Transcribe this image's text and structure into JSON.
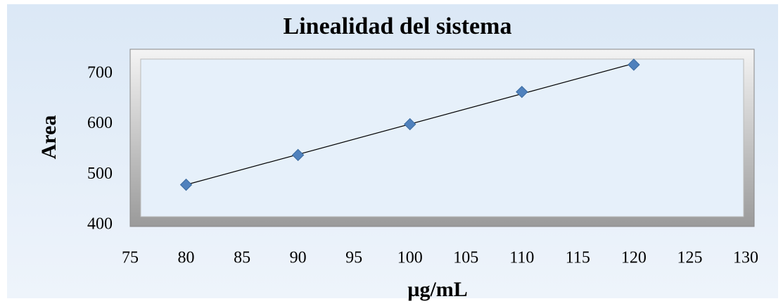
{
  "chart_data": {
    "type": "scatter",
    "title": "Linealidad del sistema",
    "x_label": "µg/mL",
    "y_label": "Area",
    "series": [
      {
        "name": "Area",
        "color": "#4f81bd",
        "x": [
          80,
          90,
          100,
          110,
          120
        ],
        "values": [
          480,
          539,
          600,
          664,
          718
        ]
      }
    ],
    "trendline": true,
    "xlim": [
      75,
      130
    ],
    "xticks": [
      75,
      80,
      85,
      90,
      95,
      100,
      105,
      110,
      115,
      120,
      125,
      130
    ],
    "ylim": [
      400,
      750
    ],
    "yticks": [
      400,
      500,
      600,
      700
    ]
  }
}
